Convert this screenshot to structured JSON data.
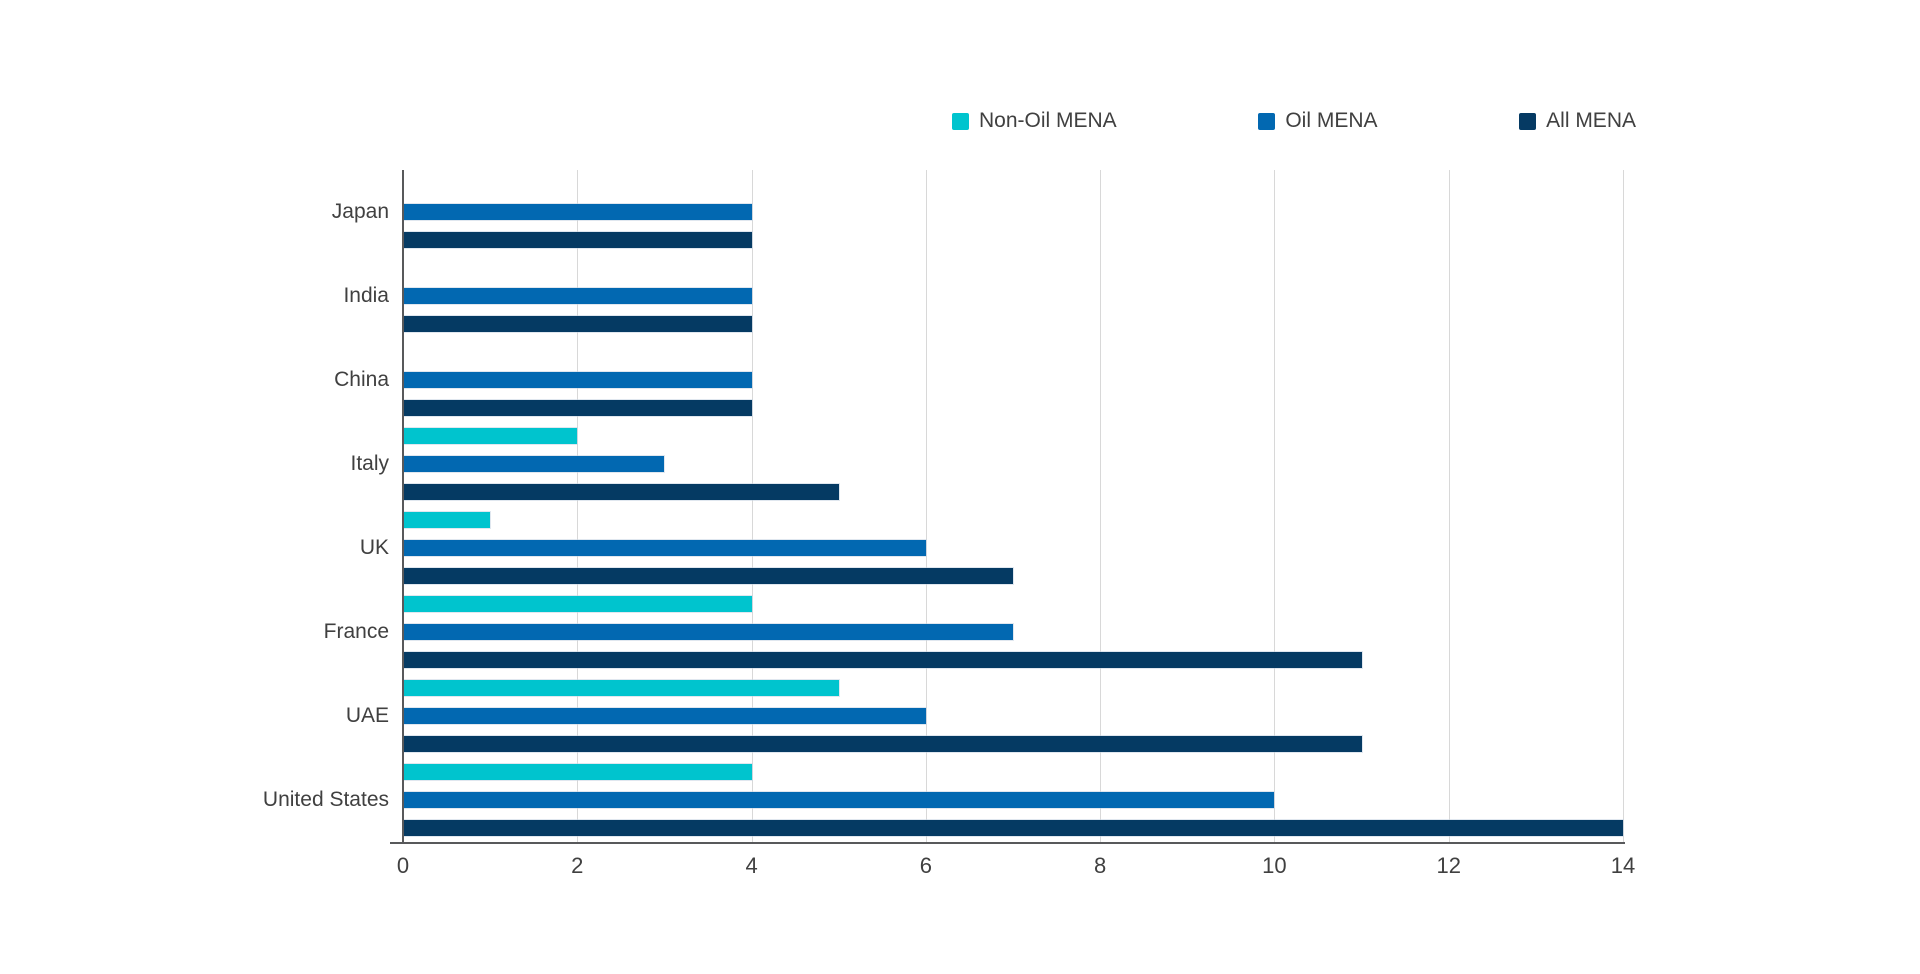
{
  "page": {
    "background": "#ffffff",
    "title": ""
  },
  "legend": {
    "position": "top",
    "items": [
      {
        "label": "Non-Oil MENA",
        "color": "#00C4CE"
      },
      {
        "label": "Oil MENA",
        "color": "#0268B1"
      },
      {
        "label": "All MENA",
        "color": "#053A63"
      }
    ]
  },
  "chart_data": {
    "type": "bar",
    "orientation": "horizontal",
    "title": "",
    "xlabel": "",
    "ylabel": "",
    "categories": [
      "Japan",
      "India",
      "China",
      "Italy",
      "UK",
      "France",
      "UAE",
      "United States"
    ],
    "series": [
      {
        "name": "Non-Oil MENA",
        "color": "#00C4CE",
        "values": [
          0,
          0,
          0,
          2,
          1,
          4,
          5,
          4
        ]
      },
      {
        "name": "Oil MENA",
        "color": "#0268B1",
        "values": [
          4,
          4,
          4,
          3,
          6,
          7,
          6,
          10
        ]
      },
      {
        "name": "All MENA",
        "color": "#053A63",
        "values": [
          4,
          4,
          4,
          5,
          7,
          11,
          11,
          14
        ]
      }
    ],
    "xlim": [
      0,
      14
    ],
    "x_ticks": [
      0,
      2,
      4,
      6,
      8,
      10,
      12,
      14
    ],
    "grid": true,
    "legend_position": "top"
  },
  "axis": {
    "tick_labels": [
      "0",
      "2",
      "4",
      "6",
      "8",
      "10",
      "12",
      "14"
    ],
    "grid_color": "#d8d8d8",
    "axis_color": "#58595b",
    "text_color": "#404040"
  }
}
